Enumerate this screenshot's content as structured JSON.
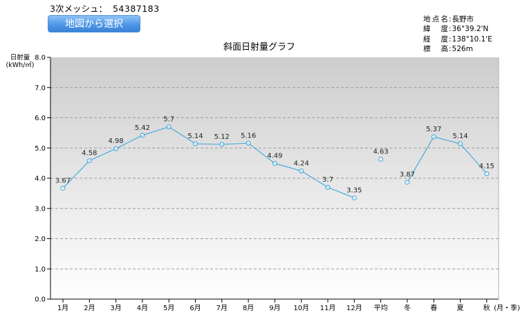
{
  "header": {
    "mesh_label": "3次メッシュ：",
    "mesh_value": "54387183",
    "map_button_label": "地図から選択"
  },
  "location": {
    "rows": [
      {
        "key": "地点名",
        "value": "長野市"
      },
      {
        "key": "緯度",
        "value": "36°39.2'N"
      },
      {
        "key": "経度",
        "value": "138°10.1'E"
      },
      {
        "key": "標高",
        "value": "526m"
      }
    ]
  },
  "chart_data": {
    "type": "line",
    "title": "斜面日射量グラフ",
    "ylabel": "日射量\n(kWh/㎡)",
    "xlabel": "(月・季)",
    "ylim": [
      0,
      8
    ],
    "yticks": [
      "0.0",
      "1.0",
      "2.0",
      "3.0",
      "4.0",
      "5.0",
      "6.0",
      "7.0",
      "8.0"
    ],
    "grid": true,
    "categories": [
      "1月",
      "2月",
      "3月",
      "4月",
      "5月",
      "6月",
      "7月",
      "8月",
      "9月",
      "10月",
      "11月",
      "12月",
      "平均",
      "冬",
      "春",
      "夏",
      "秋"
    ],
    "series": [
      {
        "segment": "monthly",
        "color": "#3aa6dd",
        "points": [
          {
            "x": "1月",
            "y": 3.67,
            "label": "3.67"
          },
          {
            "x": "2月",
            "y": 4.58,
            "label": "4.58"
          },
          {
            "x": "3月",
            "y": 4.98,
            "label": "4.98"
          },
          {
            "x": "4月",
            "y": 5.42,
            "label": "5.42"
          },
          {
            "x": "5月",
            "y": 5.7,
            "label": "5.7"
          },
          {
            "x": "6月",
            "y": 5.14,
            "label": "5.14"
          },
          {
            "x": "7月",
            "y": 5.12,
            "label": "5.12"
          },
          {
            "x": "8月",
            "y": 5.16,
            "label": "5.16"
          },
          {
            "x": "9月",
            "y": 4.49,
            "label": "4.49"
          },
          {
            "x": "10月",
            "y": 4.24,
            "label": "4.24"
          },
          {
            "x": "11月",
            "y": 3.7,
            "label": "3.7"
          },
          {
            "x": "12月",
            "y": 3.35,
            "label": "3.35"
          }
        ]
      },
      {
        "segment": "average",
        "color": "#3aa6dd",
        "points": [
          {
            "x": "平均",
            "y": 4.63,
            "label": "4.63"
          }
        ]
      },
      {
        "segment": "seasonal",
        "color": "#3aa6dd",
        "points": [
          {
            "x": "冬",
            "y": 3.87,
            "label": "3.87"
          },
          {
            "x": "春",
            "y": 5.37,
            "label": "5.37"
          },
          {
            "x": "夏",
            "y": 5.14,
            "label": "5.14"
          },
          {
            "x": "秋",
            "y": 4.15,
            "label": "4.15"
          }
        ]
      }
    ]
  }
}
